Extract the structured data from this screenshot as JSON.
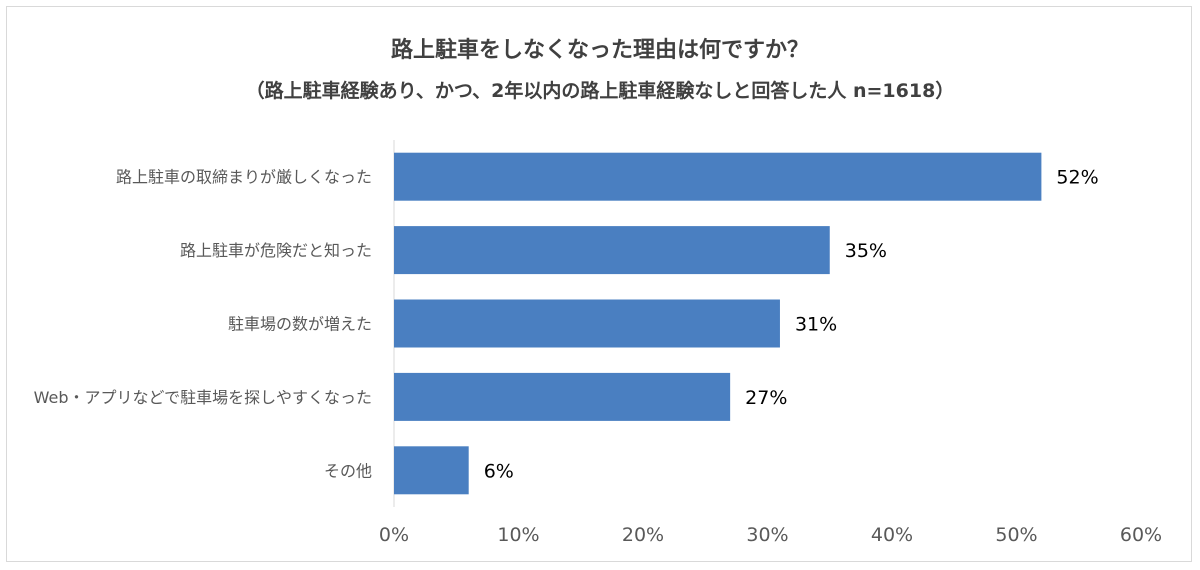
{
  "chart_data": {
    "type": "bar",
    "orientation": "horizontal",
    "title": "路上駐車をしなくなった理由は何ですか？",
    "subtitle": "（路上駐車経験あり、かつ、2年以内の路上駐車経験なしと回答した人 n=1618）",
    "categories": [
      "路上駐車の取締まりが厳しくなった",
      "路上駐車が危険だと知った",
      "駐車場の数が増えた",
      "Web・アプリなどで駐車場を探しやすくなった",
      "その他"
    ],
    "values": [
      52,
      35,
      31,
      27,
      6
    ],
    "value_labels": [
      "52%",
      "35%",
      "31%",
      "27%",
      "6%"
    ],
    "x_ticks": [
      "0%",
      "10%",
      "20%",
      "30%",
      "40%",
      "50%",
      "60%"
    ],
    "xlim": [
      0,
      60
    ],
    "grid": false,
    "legend": "none",
    "bar_color": "#4a7fc1"
  }
}
